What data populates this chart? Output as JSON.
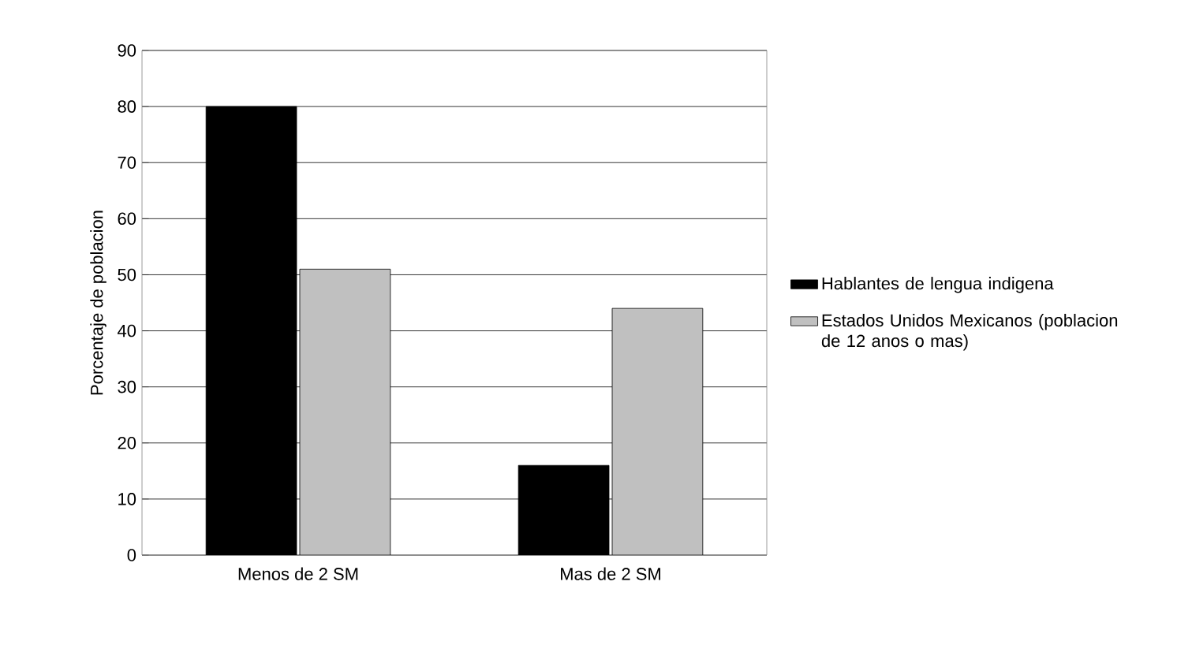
{
  "chart_data": {
    "type": "bar",
    "ylabel": "Porcentaje de poblacion",
    "categories": [
      "Menos de 2 SM",
      "Mas de 2 SM"
    ],
    "series": [
      {
        "name": "Hablantes de lengua indigena",
        "color": "#000000",
        "values": [
          80,
          16
        ]
      },
      {
        "name": "Estados Unidos Mexicanos (poblacion de 12 anos o mas)",
        "color": "#c0c0c0",
        "values": [
          51,
          44
        ]
      }
    ],
    "ylim": [
      0,
      90
    ],
    "yticks": [
      0,
      10,
      20,
      30,
      40,
      50,
      60,
      70,
      80,
      90
    ],
    "grid": "y",
    "legend": "right"
  }
}
